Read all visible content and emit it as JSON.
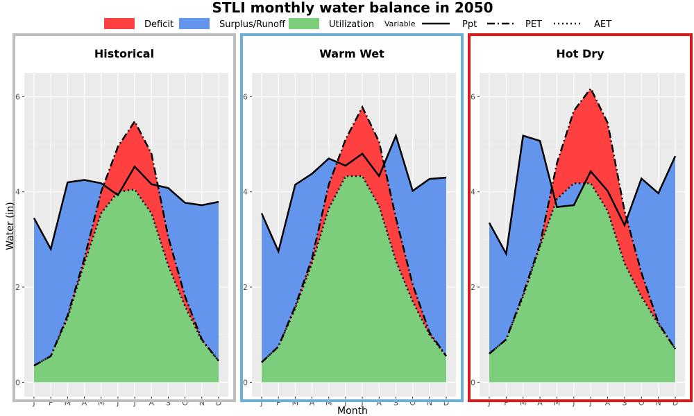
{
  "title": "STLI monthly water balance in 2050",
  "ylabel": "Water (in)",
  "xlabel": "Month",
  "legend": {
    "fill_items": [
      {
        "label": "Deficit",
        "color": "#ff4040"
      },
      {
        "label": "Surplus/Runoff",
        "color": "#6495ed"
      },
      {
        "label": "Utilization",
        "color": "#7ccd7c"
      }
    ],
    "variable_title": "Variable",
    "line_items": [
      {
        "label": "Ppt",
        "dash": "solid"
      },
      {
        "label": "PET",
        "dash": "longdash"
      },
      {
        "label": "AET",
        "dash": "dotted"
      }
    ]
  },
  "chart_data": [
    {
      "type": "area",
      "title": "Historical",
      "frame_color": "#bebebe",
      "categories": [
        "J",
        "F",
        "M",
        "A",
        "M",
        "J",
        "J",
        "A",
        "S",
        "O",
        "N",
        "D"
      ],
      "yticks": [
        0,
        2,
        4,
        6
      ],
      "ylim": [
        -0.3,
        6.5
      ],
      "grid": true,
      "series": [
        {
          "name": "Ppt",
          "values": [
            3.45,
            2.8,
            4.2,
            4.25,
            4.18,
            3.93,
            4.53,
            4.16,
            4.08,
            3.77,
            3.72,
            3.79
          ]
        },
        {
          "name": "PET",
          "values": [
            0.35,
            0.55,
            1.4,
            2.6,
            4.0,
            4.95,
            5.48,
            4.8,
            3.05,
            1.8,
            0.9,
            0.45
          ]
        },
        {
          "name": "AET",
          "values": [
            0.35,
            0.55,
            1.35,
            2.5,
            3.55,
            4.0,
            4.05,
            3.55,
            2.45,
            1.6,
            0.88,
            0.45
          ]
        }
      ]
    },
    {
      "type": "area",
      "title": "Warm Wet",
      "frame_color": "#6baed6",
      "categories": [
        "J",
        "F",
        "M",
        "A",
        "M",
        "J",
        "J",
        "A",
        "S",
        "O",
        "N",
        "D"
      ],
      "yticks": [
        0,
        2,
        4,
        6
      ],
      "ylim": [
        -0.3,
        6.5
      ],
      "grid": true,
      "series": [
        {
          "name": "Ppt",
          "values": [
            3.55,
            2.75,
            4.15,
            4.38,
            4.7,
            4.55,
            4.8,
            4.33,
            5.18,
            4.02,
            4.27,
            4.3
          ]
        },
        {
          "name": "PET",
          "values": [
            0.42,
            0.75,
            1.6,
            2.6,
            4.15,
            5.1,
            5.78,
            5.05,
            3.45,
            2.05,
            1.05,
            0.55
          ]
        },
        {
          "name": "AET",
          "values": [
            0.42,
            0.75,
            1.55,
            2.5,
            3.65,
            4.33,
            4.33,
            3.7,
            2.55,
            1.7,
            1.0,
            0.55
          ]
        }
      ]
    },
    {
      "type": "area",
      "title": "Hot Dry",
      "frame_color": "#d01c1c",
      "categories": [
        "J",
        "F",
        "M",
        "A",
        "M",
        "J",
        "J",
        "A",
        "S",
        "O",
        "N",
        "D"
      ],
      "yticks": [
        0,
        2,
        4,
        6
      ],
      "ylim": [
        -0.3,
        6.5
      ],
      "grid": true,
      "series": [
        {
          "name": "Ppt",
          "values": [
            3.35,
            2.7,
            5.18,
            5.07,
            3.68,
            3.72,
            4.43,
            4.02,
            3.3,
            4.28,
            3.97,
            4.75
          ]
        },
        {
          "name": "PET",
          "values": [
            0.6,
            0.9,
            1.85,
            2.9,
            4.6,
            5.7,
            6.17,
            5.45,
            3.6,
            2.3,
            1.25,
            0.7
          ]
        },
        {
          "name": "AET",
          "values": [
            0.6,
            0.9,
            1.8,
            2.85,
            3.85,
            4.18,
            4.18,
            3.6,
            2.5,
            1.8,
            1.22,
            0.7
          ]
        }
      ]
    }
  ]
}
